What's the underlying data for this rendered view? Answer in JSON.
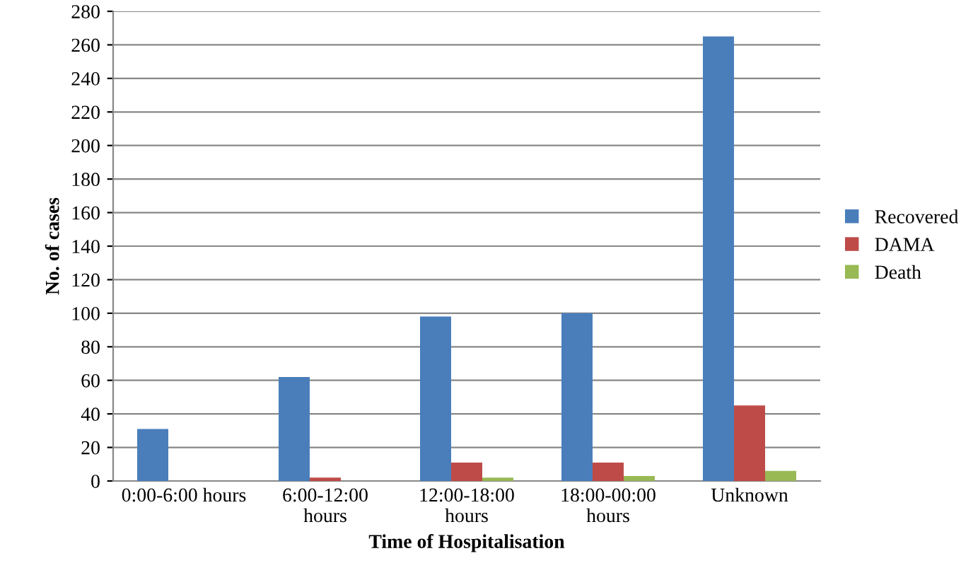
{
  "chart_data": {
    "type": "bar",
    "xlabel": "Time of Hospitalisation",
    "ylabel": "No. of cases",
    "categories": [
      "0:00-6:00 hours",
      "6:00-12:00\nhours",
      "12:00-18:00\nhours",
      "18:00-00:00\nhours",
      "Unknown"
    ],
    "series": [
      {
        "name": "Recovered",
        "color": "#4a7ebb",
        "values": [
          31,
          62,
          98,
          100,
          265
        ]
      },
      {
        "name": "DAMA",
        "color": "#be4b48",
        "values": [
          0,
          2,
          11,
          11,
          45
        ]
      },
      {
        "name": "Death",
        "color": "#98b954",
        "values": [
          0,
          0,
          2,
          3,
          6
        ]
      }
    ],
    "ylim": [
      0,
      280
    ],
    "yticks": [
      0,
      20,
      40,
      60,
      80,
      100,
      120,
      140,
      160,
      180,
      200,
      220,
      240,
      260,
      280
    ],
    "grid": "y",
    "legend": "right"
  }
}
